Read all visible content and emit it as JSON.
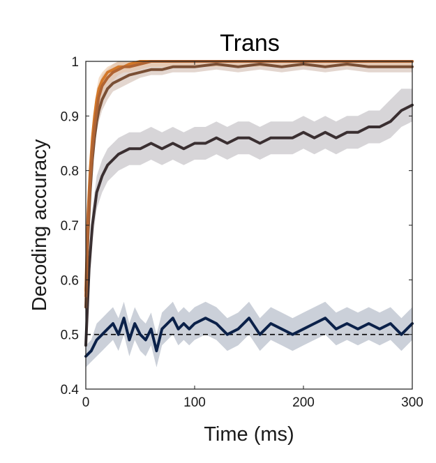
{
  "chart_data": {
    "type": "line",
    "title": "Trans",
    "xlabel": "Time (ms)",
    "ylabel": "Decoding accuracy",
    "xlim": [
      0,
      300
    ],
    "ylim": [
      0.4,
      1
    ],
    "xticks": [
      0,
      100,
      200,
      300
    ],
    "yticks": [
      0.4,
      0.5,
      0.6,
      0.7,
      0.8,
      0.9,
      1
    ],
    "xtick_labels": [
      "0",
      "100",
      "200",
      "300"
    ],
    "ytick_labels": [
      "0.4",
      "0.5",
      "0.6",
      "0.7",
      "0.8",
      "0.9",
      "1"
    ],
    "grid": false,
    "legend": "none",
    "chance_level": 0.5,
    "series": [
      {
        "color": "#0b2149",
        "band_color": "#b9c0cc",
        "x": [
          0,
          5,
          10,
          15,
          20,
          25,
          30,
          35,
          40,
          45,
          50,
          55,
          60,
          65,
          70,
          75,
          80,
          85,
          90,
          95,
          100,
          110,
          120,
          130,
          140,
          150,
          160,
          170,
          180,
          190,
          200,
          210,
          220,
          230,
          240,
          250,
          260,
          270,
          280,
          290,
          300
        ],
        "y": [
          0.46,
          0.47,
          0.49,
          0.5,
          0.51,
          0.52,
          0.5,
          0.53,
          0.49,
          0.52,
          0.5,
          0.49,
          0.51,
          0.47,
          0.51,
          0.52,
          0.53,
          0.51,
          0.52,
          0.51,
          0.52,
          0.53,
          0.52,
          0.5,
          0.51,
          0.53,
          0.5,
          0.52,
          0.51,
          0.5,
          0.51,
          0.52,
          0.53,
          0.51,
          0.52,
          0.51,
          0.52,
          0.51,
          0.52,
          0.5,
          0.52
        ],
        "lower": [
          0.44,
          0.45,
          0.46,
          0.47,
          0.48,
          0.49,
          0.47,
          0.5,
          0.46,
          0.49,
          0.47,
          0.46,
          0.48,
          0.44,
          0.48,
          0.49,
          0.5,
          0.48,
          0.49,
          0.48,
          0.49,
          0.5,
          0.49,
          0.47,
          0.48,
          0.5,
          0.47,
          0.49,
          0.48,
          0.47,
          0.48,
          0.49,
          0.5,
          0.48,
          0.49,
          0.48,
          0.49,
          0.48,
          0.49,
          0.47,
          0.49
        ],
        "upper": [
          0.48,
          0.49,
          0.52,
          0.53,
          0.54,
          0.55,
          0.53,
          0.56,
          0.52,
          0.55,
          0.53,
          0.52,
          0.54,
          0.5,
          0.54,
          0.55,
          0.56,
          0.54,
          0.55,
          0.54,
          0.55,
          0.56,
          0.55,
          0.53,
          0.54,
          0.56,
          0.53,
          0.55,
          0.54,
          0.53,
          0.54,
          0.55,
          0.56,
          0.54,
          0.55,
          0.54,
          0.55,
          0.54,
          0.55,
          0.53,
          0.55
        ]
      },
      {
        "color": "#3a2f31",
        "band_color": "#c9c7cb",
        "x": [
          0,
          3,
          6,
          10,
          15,
          20,
          25,
          30,
          40,
          50,
          60,
          70,
          80,
          90,
          100,
          110,
          120,
          130,
          140,
          150,
          160,
          170,
          180,
          190,
          200,
          210,
          220,
          230,
          240,
          250,
          260,
          270,
          280,
          290,
          300
        ],
        "y": [
          0.48,
          0.62,
          0.7,
          0.76,
          0.79,
          0.81,
          0.82,
          0.83,
          0.84,
          0.84,
          0.85,
          0.84,
          0.85,
          0.84,
          0.85,
          0.85,
          0.86,
          0.85,
          0.86,
          0.86,
          0.85,
          0.86,
          0.86,
          0.86,
          0.87,
          0.86,
          0.87,
          0.86,
          0.87,
          0.87,
          0.88,
          0.88,
          0.89,
          0.91,
          0.92
        ],
        "lower": [
          0.46,
          0.6,
          0.67,
          0.73,
          0.76,
          0.78,
          0.79,
          0.8,
          0.81,
          0.81,
          0.82,
          0.81,
          0.82,
          0.81,
          0.82,
          0.82,
          0.83,
          0.82,
          0.83,
          0.83,
          0.82,
          0.83,
          0.83,
          0.83,
          0.84,
          0.83,
          0.84,
          0.83,
          0.84,
          0.84,
          0.85,
          0.85,
          0.86,
          0.88,
          0.89
        ],
        "upper": [
          0.5,
          0.64,
          0.73,
          0.79,
          0.82,
          0.84,
          0.85,
          0.86,
          0.87,
          0.87,
          0.88,
          0.87,
          0.88,
          0.87,
          0.88,
          0.88,
          0.89,
          0.88,
          0.89,
          0.89,
          0.88,
          0.89,
          0.89,
          0.89,
          0.9,
          0.89,
          0.9,
          0.89,
          0.9,
          0.9,
          0.91,
          0.91,
          0.93,
          0.95,
          0.95
        ]
      },
      {
        "color": "#7a4f35",
        "band_color": "#d9c8bf",
        "x": [
          0,
          2,
          4,
          6,
          8,
          10,
          12,
          15,
          20,
          25,
          30,
          35,
          40,
          50,
          60,
          70,
          80,
          90,
          100,
          120,
          140,
          160,
          180,
          200,
          220,
          240,
          260,
          280,
          300
        ],
        "y": [
          0.55,
          0.68,
          0.76,
          0.82,
          0.86,
          0.89,
          0.91,
          0.93,
          0.95,
          0.96,
          0.965,
          0.97,
          0.975,
          0.98,
          0.985,
          0.985,
          0.99,
          0.99,
          0.99,
          0.995,
          0.99,
          0.995,
          0.99,
          0.995,
          0.99,
          0.995,
          0.99,
          0.99,
          0.99
        ],
        "lower": [
          0.53,
          0.66,
          0.74,
          0.8,
          0.84,
          0.87,
          0.89,
          0.91,
          0.93,
          0.945,
          0.95,
          0.955,
          0.96,
          0.97,
          0.975,
          0.975,
          0.98,
          0.98,
          0.98,
          0.985,
          0.98,
          0.985,
          0.98,
          0.985,
          0.98,
          0.985,
          0.98,
          0.98,
          0.98
        ],
        "upper": [
          0.57,
          0.7,
          0.78,
          0.84,
          0.88,
          0.91,
          0.93,
          0.95,
          0.97,
          0.975,
          0.98,
          0.985,
          0.99,
          0.99,
          0.995,
          0.995,
          1.0,
          1.0,
          1.0,
          1.0,
          1.0,
          1.0,
          1.0,
          1.0,
          1.0,
          1.0,
          1.0,
          1.0,
          1.0
        ]
      },
      {
        "color": "#d3782a",
        "band_color": "#f0d2b5",
        "x": [
          0,
          2,
          4,
          6,
          8,
          10,
          12,
          15,
          20,
          25,
          30,
          35,
          40,
          50,
          60,
          80,
          100,
          150,
          200,
          250,
          300
        ],
        "y": [
          0.58,
          0.72,
          0.8,
          0.86,
          0.9,
          0.93,
          0.95,
          0.965,
          0.98,
          0.985,
          0.99,
          0.99,
          0.995,
          1.0,
          1.0,
          1.0,
          1.0,
          1.0,
          1.0,
          1.0,
          1.0
        ],
        "lower": [
          0.56,
          0.7,
          0.78,
          0.84,
          0.88,
          0.91,
          0.93,
          0.95,
          0.97,
          0.975,
          0.98,
          0.98,
          0.985,
          0.99,
          0.99,
          0.99,
          0.99,
          0.99,
          0.99,
          0.99,
          0.99
        ],
        "upper": [
          0.6,
          0.74,
          0.82,
          0.88,
          0.92,
          0.95,
          0.97,
          0.98,
          0.99,
          0.995,
          1.0,
          1.0,
          1.0,
          1.0,
          1.0,
          1.0,
          1.0,
          1.0,
          1.0,
          1.0,
          1.0
        ]
      },
      {
        "color": "#b06433",
        "band_color": "#e3c6b0",
        "x": [
          0,
          2,
          4,
          6,
          8,
          10,
          12,
          15,
          20,
          25,
          30,
          35,
          40,
          50,
          60,
          80,
          100,
          150,
          200,
          250,
          300
        ],
        "y": [
          0.57,
          0.7,
          0.78,
          0.84,
          0.88,
          0.91,
          0.935,
          0.955,
          0.97,
          0.98,
          0.985,
          0.99,
          0.99,
          0.995,
          1.0,
          1.0,
          1.0,
          1.0,
          1.0,
          1.0,
          1.0
        ],
        "lower": [
          0.55,
          0.68,
          0.76,
          0.82,
          0.86,
          0.89,
          0.915,
          0.935,
          0.955,
          0.965,
          0.975,
          0.98,
          0.98,
          0.985,
          0.99,
          0.99,
          0.99,
          0.99,
          0.99,
          0.99,
          0.99
        ],
        "upper": [
          0.59,
          0.72,
          0.8,
          0.86,
          0.9,
          0.93,
          0.955,
          0.975,
          0.985,
          0.995,
          1.0,
          1.0,
          1.0,
          1.0,
          1.0,
          1.0,
          1.0,
          1.0,
          1.0,
          1.0,
          1.0
        ]
      }
    ]
  }
}
